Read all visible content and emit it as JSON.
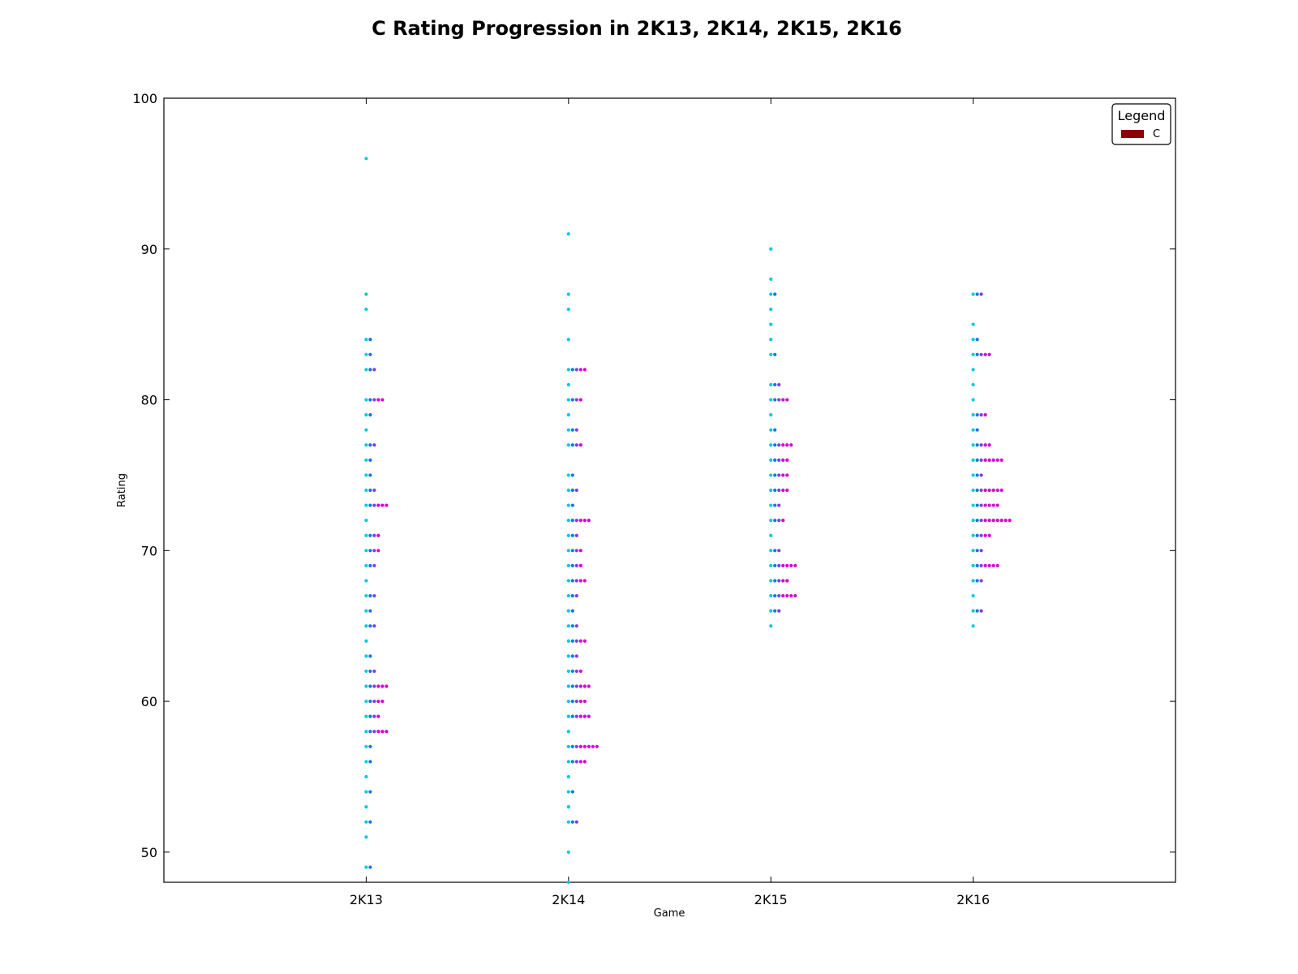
{
  "chart_data": {
    "type": "scatter",
    "title": "C Rating Progression in 2K13, 2K14, 2K15, 2K16",
    "xlabel": "Game",
    "ylabel": "Rating",
    "categories": [
      "2K13",
      "2K14",
      "2K15",
      "2K16"
    ],
    "ylim": [
      48,
      100
    ],
    "yticks": [
      50,
      60,
      70,
      80,
      90,
      100
    ],
    "legend": {
      "title": "Legend",
      "placement": "top-right",
      "entries": [
        {
          "label": "C",
          "color": "#8b0000"
        }
      ]
    },
    "palette": [
      "#00c8e0",
      "#1a73e8",
      "#7b3fe4",
      "#d400d4"
    ],
    "series": [
      {
        "category": "2K13",
        "values": [
          96,
          87,
          86,
          84,
          84,
          83,
          83,
          82,
          82,
          82,
          80,
          80,
          80,
          80,
          80,
          79,
          79,
          78,
          77,
          77,
          77,
          76,
          76,
          75,
          75,
          74,
          74,
          74,
          73,
          73,
          73,
          73,
          73,
          73,
          72,
          71,
          71,
          71,
          71,
          70,
          70,
          70,
          70,
          69,
          69,
          69,
          68,
          67,
          67,
          67,
          66,
          66,
          65,
          65,
          65,
          64,
          63,
          63,
          62,
          62,
          62,
          61,
          61,
          61,
          61,
          61,
          61,
          60,
          60,
          60,
          60,
          60,
          59,
          59,
          59,
          59,
          58,
          58,
          58,
          58,
          58,
          58,
          57,
          57,
          56,
          56,
          55,
          54,
          54,
          53,
          52,
          52,
          51,
          49,
          49
        ]
      },
      {
        "category": "2K14",
        "values": [
          91,
          87,
          86,
          84,
          82,
          82,
          82,
          82,
          82,
          81,
          80,
          80,
          80,
          80,
          79,
          78,
          78,
          78,
          77,
          77,
          77,
          77,
          75,
          75,
          74,
          74,
          74,
          73,
          73,
          72,
          72,
          72,
          72,
          72,
          72,
          71,
          71,
          71,
          70,
          70,
          70,
          70,
          69,
          69,
          69,
          69,
          68,
          68,
          68,
          68,
          68,
          67,
          67,
          67,
          66,
          66,
          65,
          65,
          65,
          64,
          64,
          64,
          64,
          64,
          63,
          63,
          63,
          62,
          62,
          62,
          62,
          61,
          61,
          61,
          61,
          61,
          61,
          60,
          60,
          60,
          60,
          60,
          59,
          59,
          59,
          59,
          59,
          59,
          58,
          57,
          57,
          57,
          57,
          57,
          57,
          57,
          57,
          56,
          56,
          56,
          56,
          56,
          55,
          54,
          54,
          53,
          52,
          52,
          52,
          50,
          48
        ]
      },
      {
        "category": "2K15",
        "values": [
          90,
          88,
          87,
          87,
          86,
          85,
          84,
          83,
          83,
          81,
          81,
          81,
          80,
          80,
          80,
          80,
          80,
          79,
          78,
          78,
          77,
          77,
          77,
          77,
          77,
          77,
          76,
          76,
          76,
          76,
          76,
          75,
          75,
          75,
          75,
          75,
          74,
          74,
          74,
          74,
          74,
          73,
          73,
          73,
          72,
          72,
          72,
          72,
          71,
          70,
          70,
          70,
          69,
          69,
          69,
          69,
          69,
          69,
          69,
          68,
          68,
          68,
          68,
          68,
          67,
          67,
          67,
          67,
          67,
          67,
          67,
          66,
          66,
          66,
          65
        ]
      },
      {
        "category": "2K16",
        "values": [
          87,
          87,
          87,
          85,
          84,
          84,
          83,
          83,
          83,
          83,
          83,
          82,
          81,
          80,
          79,
          79,
          79,
          79,
          78,
          78,
          77,
          77,
          77,
          77,
          77,
          76,
          76,
          76,
          76,
          76,
          76,
          76,
          76,
          75,
          75,
          75,
          74,
          74,
          74,
          74,
          74,
          74,
          74,
          74,
          73,
          73,
          73,
          73,
          73,
          73,
          73,
          72,
          72,
          72,
          72,
          72,
          72,
          72,
          72,
          72,
          72,
          71,
          71,
          71,
          71,
          71,
          70,
          70,
          70,
          69,
          69,
          69,
          69,
          69,
          69,
          69,
          68,
          68,
          68,
          67,
          66,
          66,
          66,
          65
        ]
      }
    ]
  }
}
